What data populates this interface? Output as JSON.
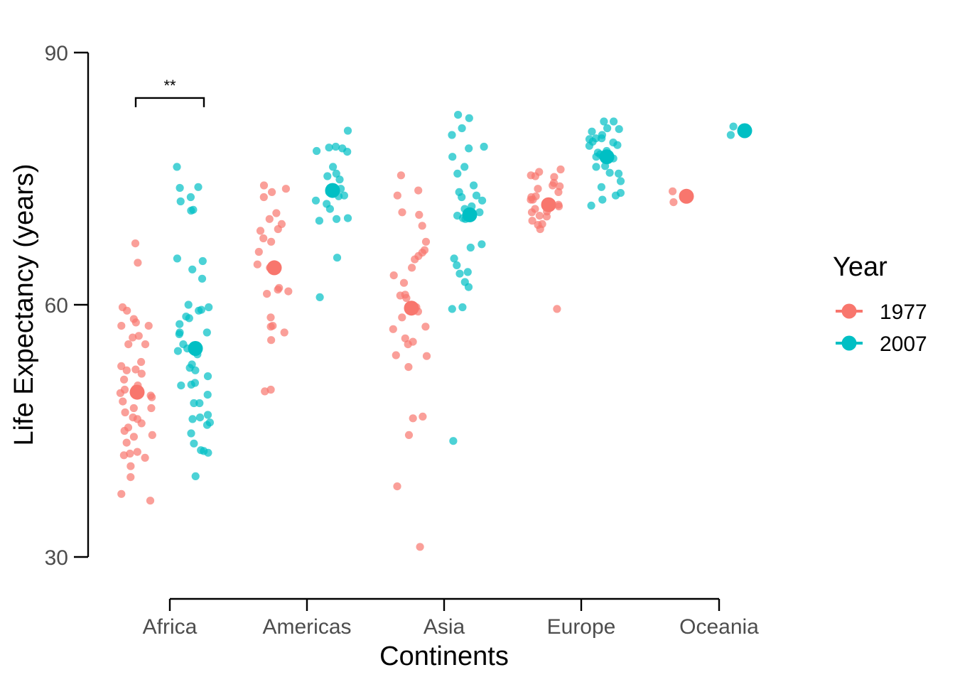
{
  "chart_data": {
    "type": "scatter",
    "subtype": "jittered strip plot with group means",
    "title": "",
    "xlabel": "Continents",
    "ylabel": "Life Expectancy (years)",
    "ylim": [
      25,
      90
    ],
    "yticks": [
      30,
      60,
      90
    ],
    "categories": [
      "Africa",
      "Americas",
      "Asia",
      "Europe",
      "Oceania"
    ],
    "grid": false,
    "legend": {
      "title": "Year",
      "position": "right",
      "entries": [
        {
          "label": "1977",
          "color": "#F8766D"
        },
        {
          "label": "2007",
          "color": "#00BFC4"
        }
      ]
    },
    "series": [
      {
        "name": "1977",
        "color": "#F8766D",
        "means": {
          "Africa": 49.6,
          "Americas": 64.4,
          "Asia": 59.6,
          "Europe": 71.9,
          "Oceania": 72.9
        },
        "points": {
          "Africa": [
            67.3,
            65.0,
            59.7,
            59.3,
            58.3,
            57.9,
            57.5,
            57.5,
            56.3,
            56.1,
            55.3,
            55.3,
            53.2,
            52.7,
            52.3,
            52.2,
            51.8,
            51.1,
            50.4,
            50.0,
            49.9,
            49.5,
            49.2,
            49.0,
            48.5,
            47.7,
            47.7,
            47.2,
            46.6,
            46.4,
            45.9,
            45.4,
            45.0,
            44.5,
            44.3,
            43.6,
            42.5,
            42.3,
            42.1,
            41.8,
            40.8,
            39.5,
            37.5,
            36.7
          ],
          "Americas": [
            74.2,
            73.8,
            73.4,
            72.8,
            70.9,
            70.2,
            69.6,
            69.0,
            68.8,
            67.9,
            67.5,
            66.3,
            64.8,
            64.4,
            62.0,
            61.8,
            61.6,
            61.3,
            58.5,
            57.5,
            57.4,
            56.7,
            55.8,
            49.9,
            49.7
          ],
          "Asia": [
            75.4,
            73.6,
            73.0,
            71.0,
            70.7,
            69.4,
            67.5,
            66.5,
            66.2,
            65.8,
            65.4,
            64.4,
            63.5,
            62.6,
            61.2,
            61.1,
            60.8,
            59.7,
            59.2,
            58.5,
            57.4,
            57.1,
            56.0,
            55.6,
            55.3,
            54.0,
            53.9,
            52.6,
            46.7,
            46.5,
            44.5,
            38.4,
            31.2
          ],
          "Europe": [
            76.1,
            75.8,
            75.4,
            75.3,
            75.2,
            74.5,
            74.2,
            74.1,
            73.8,
            73.4,
            72.9,
            72.8,
            72.5,
            72.5,
            72.2,
            71.9,
            71.7,
            71.4,
            71.1,
            71.0,
            70.6,
            70.5,
            70.0,
            69.6,
            69.5,
            69.0,
            59.5
          ],
          "Oceania": [
            73.5,
            72.2
          ]
        }
      },
      {
        "name": "2007",
        "color": "#00BFC4",
        "means": {
          "Africa": 54.8,
          "Americas": 73.6,
          "Asia": 70.7,
          "Europe": 77.6,
          "Oceania": 80.7
        },
        "points": {
          "Africa": [
            76.4,
            74.0,
            73.9,
            72.8,
            72.3,
            71.3,
            71.2,
            65.5,
            65.2,
            64.2,
            63.1,
            60.0,
            59.7,
            59.4,
            59.3,
            58.6,
            58.4,
            57.7,
            56.7,
            56.7,
            56.5,
            55.3,
            54.8,
            54.5,
            54.1,
            52.9,
            52.5,
            52.2,
            51.5,
            50.7,
            50.5,
            50.4,
            49.3,
            48.3,
            48.3,
            46.9,
            46.6,
            46.4,
            46.0,
            45.7,
            44.7,
            43.5,
            42.7,
            42.6,
            42.4,
            39.6
          ],
          "Americas": [
            80.7,
            78.8,
            78.6,
            78.7,
            78.3,
            78.2,
            76.4,
            75.6,
            75.3,
            74.9,
            73.8,
            73.7,
            73.4,
            73.0,
            72.9,
            72.4,
            72.0,
            71.4,
            70.3,
            70.2,
            70.0,
            65.6,
            60.9
          ],
          "Asia": [
            82.6,
            82.2,
            81.0,
            80.2,
            78.8,
            78.6,
            77.6,
            76.4,
            75.6,
            74.2,
            73.4,
            73.0,
            72.8,
            72.4,
            71.7,
            71.4,
            71.0,
            70.6,
            70.3,
            70.2,
            67.2,
            66.8,
            65.5,
            64.7,
            63.9,
            63.7,
            62.7,
            62.1,
            59.7,
            59.5,
            43.8
          ],
          "Europe": [
            81.8,
            81.8,
            81.0,
            80.9,
            80.6,
            80.2,
            79.8,
            79.8,
            79.7,
            79.4,
            79.3,
            79.0,
            78.9,
            78.3,
            78.1,
            77.9,
            77.6,
            77.4,
            76.5,
            76.4,
            75.7,
            75.6,
            74.7,
            74.0,
            73.3,
            73.0,
            72.5,
            71.8
          ],
          "Oceania": [
            81.2,
            80.2
          ]
        }
      }
    ],
    "annotations": [
      {
        "type": "significance-bracket",
        "category": "Africa",
        "between": [
          "1977",
          "2007"
        ],
        "label": "**",
        "y": 84.6
      }
    ]
  }
}
